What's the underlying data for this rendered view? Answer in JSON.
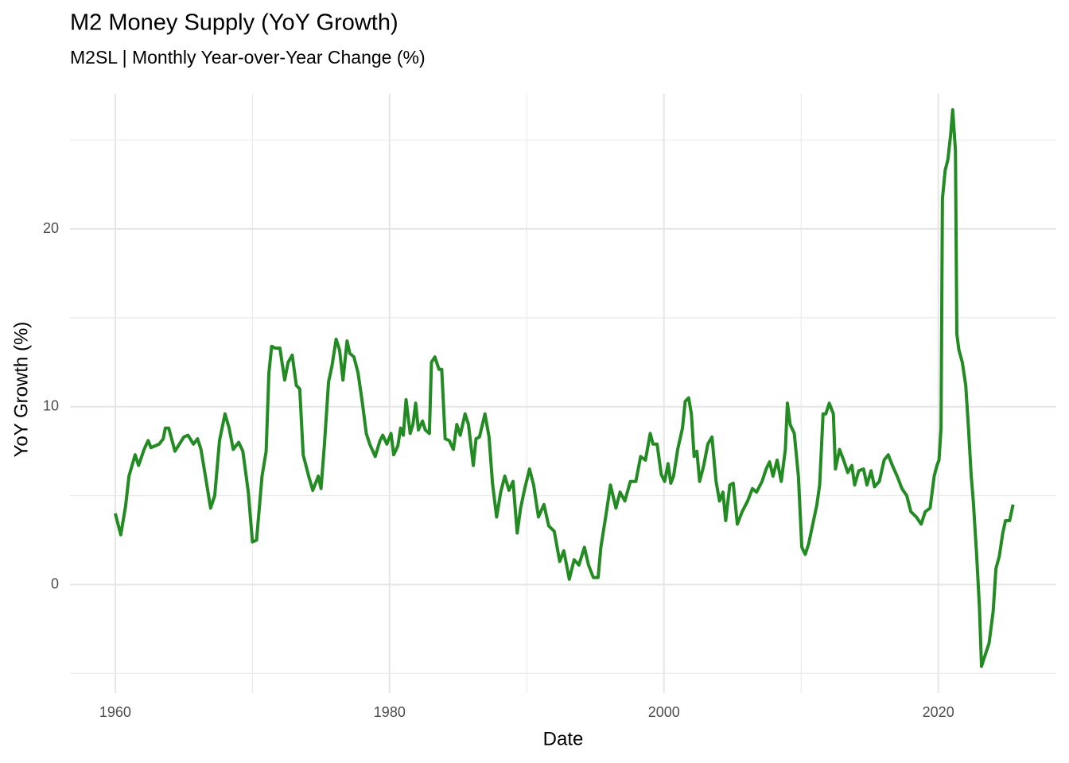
{
  "chart_data": {
    "type": "line",
    "title": "M2 Money Supply (YoY Growth)",
    "subtitle": "M2SL | Monthly Year-over-Year Change (%)",
    "x_label": "Date",
    "y_label": "YoY Growth (%)",
    "color": "#228b22",
    "xlim": [
      1956.7,
      2028.6
    ],
    "ylim": [
      -6.1,
      27.6
    ],
    "xticks": [
      1960,
      1980,
      2000,
      2020
    ],
    "yticks": [
      0,
      10,
      20
    ],
    "x_minor_ticks": [
      1970,
      1990,
      2010
    ],
    "y_minor_ticks": [
      -5,
      5,
      15,
      25
    ],
    "grid": true,
    "x": [
      1960.0,
      1960.4,
      1960.75,
      1961.0,
      1961.45,
      1961.7,
      1962.1,
      1962.4,
      1962.6,
      1963.2,
      1963.5,
      1963.65,
      1963.9,
      1964.35,
      1965.0,
      1965.3,
      1965.7,
      1966.0,
      1966.25,
      1966.55,
      1966.95,
      1967.25,
      1967.6,
      1968.0,
      1968.3,
      1968.6,
      1969.0,
      1969.3,
      1969.7,
      1970.0,
      1970.3,
      1970.7,
      1971.0,
      1971.2,
      1971.4,
      1971.65,
      1972.0,
      1972.35,
      1972.6,
      1972.9,
      1973.2,
      1973.45,
      1973.7,
      1974.1,
      1974.4,
      1974.8,
      1975.0,
      1975.25,
      1975.55,
      1975.8,
      1976.1,
      1976.35,
      1976.6,
      1976.9,
      1977.1,
      1977.4,
      1977.7,
      1978.0,
      1978.3,
      1978.55,
      1978.95,
      1979.3,
      1979.5,
      1979.8,
      1980.1,
      1980.3,
      1980.6,
      1980.8,
      1981.0,
      1981.2,
      1981.5,
      1981.7,
      1981.9,
      1982.1,
      1982.4,
      1982.6,
      1982.9,
      1983.05,
      1983.3,
      1983.6,
      1983.8,
      1984.05,
      1984.35,
      1984.65,
      1984.9,
      1985.15,
      1985.5,
      1985.75,
      1986.1,
      1986.3,
      1986.55,
      1986.95,
      1987.25,
      1987.5,
      1987.8,
      1988.1,
      1988.4,
      1988.7,
      1989.0,
      1989.3,
      1989.55,
      1989.85,
      1990.2,
      1990.5,
      1990.85,
      1991.25,
      1991.6,
      1992.0,
      1992.4,
      1992.7,
      1993.1,
      1993.45,
      1993.8,
      1994.2,
      1994.5,
      1994.85,
      1995.2,
      1995.4,
      1995.75,
      1996.1,
      1996.5,
      1996.8,
      1997.15,
      1997.55,
      1997.95,
      1998.3,
      1998.65,
      1999.0,
      1999.2,
      1999.5,
      1999.8,
      2000.05,
      2000.3,
      2000.5,
      2000.7,
      2001.0,
      2001.35,
      2001.55,
      2001.8,
      2002.0,
      2002.2,
      2002.4,
      2002.6,
      2002.9,
      2003.2,
      2003.5,
      2003.8,
      2004.05,
      2004.3,
      2004.5,
      2004.8,
      2005.05,
      2005.35,
      2005.7,
      2006.1,
      2006.45,
      2006.75,
      2007.15,
      2007.45,
      2007.7,
      2007.95,
      2008.25,
      2008.55,
      2008.85,
      2009.0,
      2009.2,
      2009.5,
      2009.8,
      2010.05,
      2010.3,
      2010.55,
      2010.85,
      2011.15,
      2011.35,
      2011.6,
      2011.8,
      2012.05,
      2012.35,
      2012.5,
      2012.8,
      2013.1,
      2013.4,
      2013.7,
      2013.9,
      2014.2,
      2014.55,
      2014.8,
      2015.1,
      2015.35,
      2015.7,
      2016.05,
      2016.35,
      2016.65,
      2017.0,
      2017.35,
      2017.7,
      2018.0,
      2018.4,
      2018.75,
      2019.05,
      2019.4,
      2019.7,
      2019.9,
      2020.05,
      2020.2,
      2020.3,
      2020.5,
      2020.7,
      2020.9,
      2021.05,
      2021.25,
      2021.35,
      2021.5,
      2021.75,
      2022.0,
      2022.2,
      2022.4,
      2022.55,
      2022.8,
      2023.0,
      2023.15,
      2023.4,
      2023.7,
      2024.0,
      2024.2,
      2024.45,
      2024.7,
      2024.9,
      2025.2,
      2025.45
    ],
    "values": [
      4.0,
      2.8,
      4.4,
      6.1,
      7.3,
      6.7,
      7.6,
      8.1,
      7.7,
      7.9,
      8.2,
      8.8,
      8.8,
      7.5,
      8.3,
      8.4,
      7.9,
      8.2,
      7.6,
      6.2,
      4.3,
      5.0,
      8.1,
      9.6,
      8.8,
      7.6,
      8.0,
      7.5,
      5.2,
      2.4,
      2.5,
      6.1,
      7.5,
      11.9,
      13.4,
      13.3,
      13.3,
      11.5,
      12.5,
      12.9,
      11.2,
      11.0,
      7.3,
      6.1,
      5.3,
      6.1,
      5.4,
      7.9,
      11.4,
      12.3,
      13.8,
      13.2,
      11.5,
      13.7,
      13.0,
      12.8,
      11.9,
      10.3,
      8.5,
      7.9,
      7.2,
      8.1,
      8.4,
      7.9,
      8.5,
      7.3,
      7.8,
      8.8,
      8.4,
      10.4,
      8.5,
      9.0,
      10.2,
      8.7,
      9.2,
      8.7,
      8.5,
      12.5,
      12.8,
      12.1,
      12.1,
      8.2,
      8.1,
      7.6,
      9.0,
      8.4,
      9.6,
      9.0,
      6.7,
      8.2,
      8.3,
      9.6,
      8.3,
      5.7,
      3.8,
      5.2,
      6.1,
      5.3,
      5.8,
      2.9,
      4.3,
      5.4,
      6.5,
      5.6,
      3.8,
      4.5,
      3.3,
      3.0,
      1.3,
      1.9,
      0.3,
      1.4,
      1.1,
      2.1,
      1.1,
      0.4,
      0.4,
      2.1,
      3.8,
      5.6,
      4.3,
      5.2,
      4.7,
      5.8,
      5.8,
      7.2,
      7.0,
      8.5,
      7.9,
      7.9,
      6.2,
      5.8,
      6.8,
      5.7,
      6.1,
      7.6,
      8.8,
      10.3,
      10.5,
      9.6,
      7.2,
      7.5,
      5.8,
      6.7,
      7.9,
      8.3,
      5.8,
      4.7,
      5.2,
      3.6,
      5.6,
      5.7,
      3.4,
      4.1,
      4.7,
      5.4,
      5.2,
      5.8,
      6.5,
      6.9,
      6.1,
      7.0,
      5.8,
      7.6,
      10.2,
      9.0,
      8.5,
      6.1,
      2.1,
      1.7,
      2.3,
      3.4,
      4.5,
      5.6,
      9.6,
      9.6,
      10.2,
      9.6,
      6.5,
      7.6,
      7.0,
      6.3,
      6.7,
      5.6,
      6.4,
      6.5,
      5.6,
      6.4,
      5.5,
      5.8,
      7.0,
      7.3,
      6.7,
      6.1,
      5.4,
      5.0,
      4.1,
      3.8,
      3.4,
      4.1,
      4.3,
      6.1,
      6.7,
      7.0,
      8.8,
      21.7,
      23.3,
      23.9,
      25.3,
      26.7,
      24.4,
      14.1,
      13.2,
      12.5,
      11.2,
      8.8,
      6.1,
      4.7,
      1.6,
      -1.3,
      -4.6,
      -4.0,
      -3.3,
      -1.5,
      0.9,
      1.6,
      2.9,
      3.6,
      3.6,
      4.5
    ]
  }
}
